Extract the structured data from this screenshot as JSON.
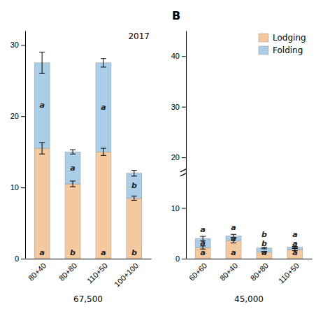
{
  "chart_data": [
    {
      "type": "bar",
      "stacked": true,
      "categories": [
        "80+40",
        "80+80",
        "110+50",
        "100+100"
      ],
      "series": [
        {
          "color": "#f5c9a0",
          "values": [
            15.5,
            10.5,
            15.0,
            8.5
          ],
          "errors": [
            0.8,
            0.4,
            0.5,
            0.3
          ],
          "letters": [
            "a",
            "b",
            "a",
            "b"
          ]
        },
        {
          "color": "#aacde8",
          "values": [
            12.0,
            4.5,
            12.5,
            3.5
          ],
          "errors": [
            1.5,
            0.3,
            0.6,
            0.4
          ],
          "letters": [
            "a",
            "a",
            "a",
            "b"
          ]
        }
      ],
      "xlabel": "67,500",
      "annotations": [
        "2017"
      ],
      "ylim": [
        0,
        32
      ],
      "yticks": [
        0,
        10,
        20,
        30
      ]
    },
    {
      "type": "bar",
      "stacked": true,
      "title": "B",
      "categories": [
        "60+60",
        "80+40",
        "80+80",
        "110+50"
      ],
      "series": [
        {
          "name": "Lodging",
          "color": "#f5c9a0",
          "values": [
            2.2,
            3.5,
            1.3,
            1.8
          ],
          "errors": [
            0.3,
            0.4,
            0.15,
            0.2
          ],
          "letters": [
            "a",
            "a",
            "a",
            "a"
          ]
        },
        {
          "name": "Folding",
          "color": "#aacde8",
          "values": [
            1.8,
            1.0,
            0.8,
            0.5
          ],
          "errors": [
            0.4,
            0.3,
            0.15,
            0.1
          ],
          "letters": [
            "a",
            "a",
            "b",
            "a"
          ]
        }
      ],
      "top_letters": [
        "a",
        "a",
        "b",
        "a"
      ],
      "xlabel": "45,000",
      "legend": "upper right",
      "axis_break": 17,
      "ylim": [
        0,
        45
      ],
      "yticks": [
        0,
        10,
        20,
        30,
        40
      ]
    }
  ]
}
